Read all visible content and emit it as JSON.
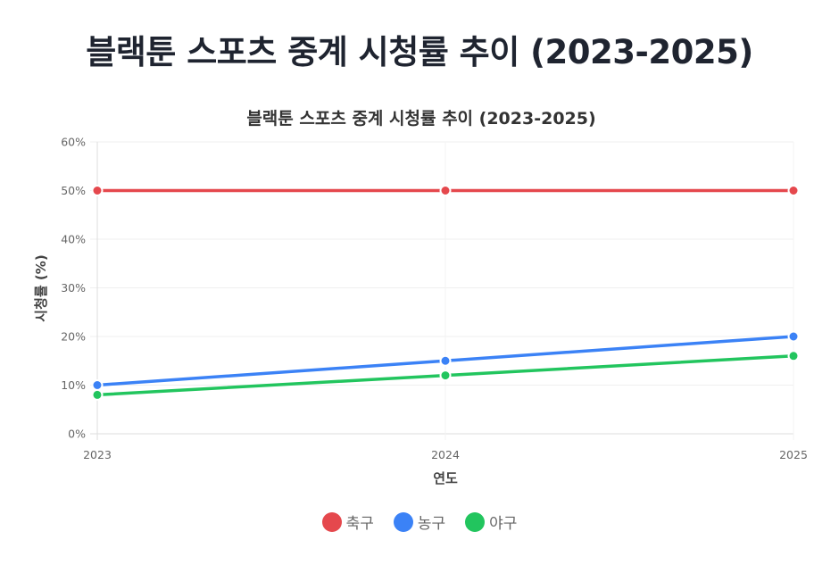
{
  "page": {
    "title": "블랙툰 스포츠 중계 시청률 추이 (2023-2025)"
  },
  "chart_data": {
    "type": "line",
    "title": "블랙툰 스포츠 중계 시청률 추이 (2023-2025)",
    "xlabel": "연도",
    "ylabel": "시청률 (%)",
    "categories": [
      "2023",
      "2024",
      "2025"
    ],
    "y_ticks": [
      "0%",
      "10%",
      "20%",
      "30%",
      "40%",
      "50%",
      "60%"
    ],
    "ylim": [
      0,
      60
    ],
    "grid": true,
    "legend_position": "bottom",
    "series": [
      {
        "name": "축구",
        "color": "#e5484d",
        "values": [
          50,
          50,
          50
        ]
      },
      {
        "name": "농구",
        "color": "#3b82f6",
        "values": [
          10,
          15,
          20
        ]
      },
      {
        "name": "야구",
        "color": "#22c55e",
        "values": [
          8,
          12,
          16
        ]
      }
    ]
  }
}
